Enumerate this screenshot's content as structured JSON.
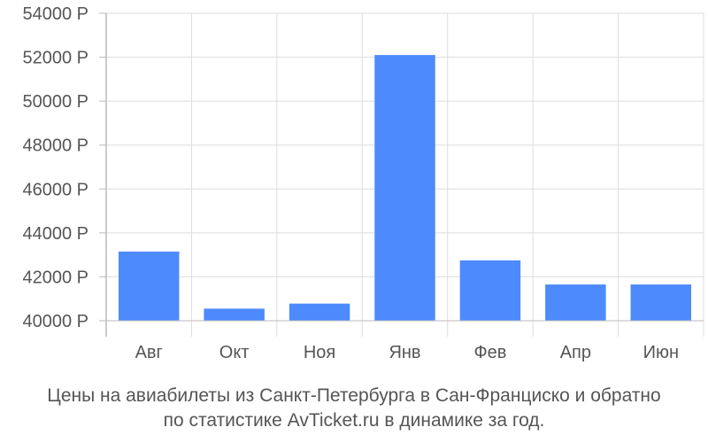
{
  "chart_data": {
    "type": "bar",
    "categories": [
      "Авг",
      "Окт",
      "Ноя",
      "Янв",
      "Фев",
      "Апр",
      "Июн"
    ],
    "values": [
      43150,
      40550,
      40780,
      52100,
      42750,
      41650,
      41650
    ],
    "ylim": [
      40000,
      54000
    ],
    "yticks": [
      40000,
      42000,
      44000,
      46000,
      48000,
      50000,
      52000,
      54000
    ],
    "ytick_labels": [
      "40000 Р",
      "42000 Р",
      "44000 Р",
      "46000 Р",
      "48000 Р",
      "50000 Р",
      "52000 Р",
      "54000 Р"
    ],
    "grid": true,
    "bar_color": "#4d8afc",
    "grid_color": "#dddddd",
    "axis_color": "#bbbbbb"
  },
  "caption": {
    "line1": "Цены на авиабилеты из Санкт-Петербурга в Сан-Франциско и обратно",
    "line2": "по статистике AvTicket.ru в динамике за год."
  }
}
